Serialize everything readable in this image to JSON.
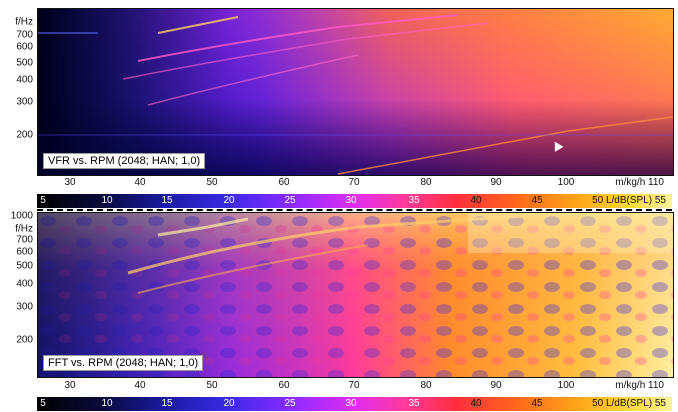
{
  "top_panel": {
    "title": "VFR vs. RPM (2048; HAN; 1,0)",
    "y_unit": "f/Hz",
    "y_ticks": [
      "700",
      "600",
      "500",
      "400",
      "300",
      "200"
    ],
    "x_ticks": [
      "30",
      "40",
      "50",
      "60",
      "70",
      "80",
      "90",
      "100"
    ],
    "x_unit": "m/kg/h 110"
  },
  "top_colorbar": {
    "ticks": [
      "5",
      "10",
      "15",
      "20",
      "25",
      "30",
      "35",
      "40",
      "45"
    ],
    "unit": "50 L/dB(SPL) 55"
  },
  "bottom_panel": {
    "title": "FFT vs. RPM (2048; HAN; 1,0)",
    "y_unit": "f/Hz",
    "y_top": "1000",
    "y_ticks": [
      "700",
      "600",
      "500",
      "400",
      "300",
      "200"
    ],
    "x_ticks": [
      "30",
      "40",
      "50",
      "60",
      "70",
      "80",
      "90",
      "100"
    ],
    "x_unit": "m/kg/h 110"
  },
  "bottom_colorbar": {
    "ticks": [
      "5",
      "10",
      "15",
      "20",
      "25",
      "30",
      "35",
      "40",
      "45"
    ],
    "unit": "50 L/dB(SPL) 55"
  },
  "colors": {
    "low": "#000000",
    "blue": "#2a1ad0",
    "magenta": "#e02ef0",
    "red": "#ff2e3e",
    "orange": "#ffab1a",
    "high": "#fff2a0"
  }
}
